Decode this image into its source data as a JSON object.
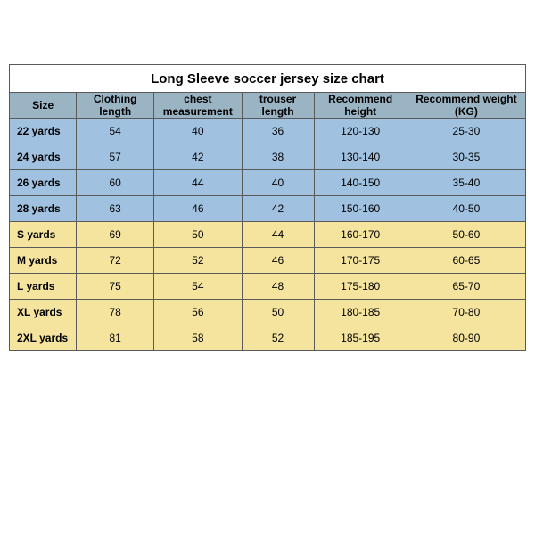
{
  "title": "Long Sleeve soccer jersey size chart",
  "columns": [
    "Size",
    "Clothing length",
    "chest measurement",
    "trouser length",
    "Recommend height",
    "Recommend weight (KG)"
  ],
  "col_widths_pct": [
    13,
    15,
    17,
    14,
    18,
    23
  ],
  "header_bg": "#9bb4c4",
  "blue_bg": "#a0c2e0",
  "yellow_bg": "#f5e49e",
  "rows": [
    {
      "group": "blue",
      "cells": [
        "22 yards",
        "54",
        "40",
        "36",
        "120-130",
        "25-30"
      ]
    },
    {
      "group": "blue",
      "cells": [
        "24 yards",
        "57",
        "42",
        "38",
        "130-140",
        "30-35"
      ]
    },
    {
      "group": "blue",
      "cells": [
        "26 yards",
        "60",
        "44",
        "40",
        "140-150",
        "35-40"
      ]
    },
    {
      "group": "blue",
      "cells": [
        "28 yards",
        "63",
        "46",
        "42",
        "150-160",
        "40-50"
      ]
    },
    {
      "group": "yellow",
      "cells": [
        "S yards",
        "69",
        "50",
        "44",
        "160-170",
        "50-60"
      ]
    },
    {
      "group": "yellow",
      "cells": [
        "M yards",
        "72",
        "52",
        "46",
        "170-175",
        "60-65"
      ]
    },
    {
      "group": "yellow",
      "cells": [
        "L yards",
        "75",
        "54",
        "48",
        "175-180",
        "65-70"
      ]
    },
    {
      "group": "yellow",
      "cells": [
        "XL yards",
        "78",
        "56",
        "50",
        "180-185",
        "70-80"
      ]
    },
    {
      "group": "yellow",
      "cells": [
        "2XL yards",
        "81",
        "58",
        "52",
        "185-195",
        "80-90"
      ]
    }
  ]
}
